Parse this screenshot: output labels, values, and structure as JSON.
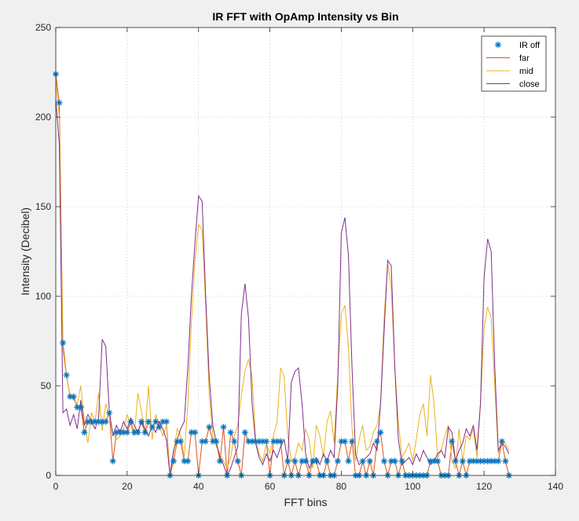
{
  "chart_data": {
    "type": "line",
    "title": "IR FFT with OpAmp Intensity vs Bin",
    "xlabel": "FFT bins",
    "ylabel": "Intensity (Decibel)",
    "xlim": [
      0,
      140
    ],
    "ylim": [
      0,
      250
    ],
    "xticks": [
      0,
      20,
      40,
      60,
      80,
      100,
      120,
      140
    ],
    "yticks": [
      0,
      50,
      100,
      150,
      200,
      250
    ],
    "grid": "on",
    "legend_position": "top-right",
    "series": [
      {
        "name": "IR off",
        "style": "marker",
        "marker": "*",
        "color": "#0072BD",
        "x": [
          0,
          1,
          2,
          3,
          4,
          5,
          6,
          7,
          8,
          9,
          10,
          11,
          12,
          13,
          14,
          15,
          16,
          17,
          18,
          19,
          20,
          21,
          22,
          23,
          24,
          25,
          26,
          27,
          28,
          29,
          30,
          31,
          32,
          33,
          34,
          35,
          36,
          37,
          38,
          39,
          40,
          41,
          42,
          43,
          44,
          45,
          46,
          47,
          48,
          49,
          50,
          51,
          52,
          53,
          54,
          55,
          56,
          57,
          58,
          59,
          60,
          61,
          62,
          63,
          64,
          65,
          66,
          67,
          68,
          69,
          70,
          71,
          72,
          73,
          74,
          75,
          76,
          77,
          78,
          79,
          80,
          81,
          82,
          83,
          84,
          85,
          86,
          87,
          88,
          89,
          90,
          91,
          92,
          93,
          94,
          95,
          96,
          97,
          98,
          99,
          100,
          101,
          102,
          103,
          104,
          105,
          106,
          107,
          108,
          109,
          110,
          111,
          112,
          113,
          114,
          115,
          116,
          117,
          118,
          119,
          120,
          121,
          122,
          123,
          124,
          125,
          126,
          127
        ],
        "y": [
          224,
          208,
          74,
          56,
          44,
          44,
          38,
          38,
          24,
          30,
          30,
          30,
          30,
          30,
          30,
          35,
          8,
          24,
          24,
          24,
          24,
          30,
          24,
          24,
          30,
          24,
          30,
          27,
          30,
          27,
          30,
          30,
          0,
          8,
          19,
          19,
          8,
          8,
          24,
          24,
          0,
          19,
          19,
          27,
          19,
          19,
          8,
          27,
          0,
          24,
          19,
          8,
          0,
          24,
          19,
          19,
          19,
          19,
          19,
          19,
          0,
          19,
          19,
          19,
          0,
          8,
          0,
          8,
          0,
          8,
          8,
          0,
          8,
          8,
          0,
          0,
          8,
          0,
          0,
          8,
          19,
          19,
          8,
          19,
          0,
          0,
          8,
          0,
          8,
          0,
          19,
          24,
          8,
          0,
          8,
          8,
          0,
          8,
          0,
          0,
          0,
          0,
          0,
          0,
          0,
          8,
          8,
          8,
          0,
          0,
          0,
          19,
          8,
          0,
          8,
          0,
          8,
          8,
          8,
          8,
          8,
          8,
          8,
          8,
          8,
          19,
          8,
          0
        ]
      },
      {
        "name": "far",
        "style": "line",
        "color": "#D95319",
        "x": [
          0,
          1,
          2,
          3,
          4,
          5,
          6,
          7,
          8,
          9,
          10,
          11,
          12,
          13,
          14,
          15,
          16,
          17,
          18,
          19,
          20,
          21,
          22,
          23,
          24,
          25,
          26,
          27,
          28,
          29,
          30,
          31,
          32,
          33,
          34,
          35,
          36,
          37,
          38,
          39,
          40,
          41,
          42,
          43,
          44,
          45,
          46,
          47,
          48,
          49,
          50,
          51,
          52,
          53,
          54,
          55,
          56,
          57,
          58,
          59,
          60,
          61,
          62,
          63,
          64,
          65,
          66,
          67,
          68,
          69,
          70,
          71,
          72,
          73,
          74,
          75,
          76,
          77,
          78,
          79,
          80,
          81,
          82,
          83,
          84,
          85,
          86,
          87,
          88,
          89,
          90,
          91,
          92,
          93,
          94,
          95,
          96,
          97,
          98,
          99,
          100,
          101,
          102,
          103,
          104,
          105,
          106,
          107,
          108,
          109,
          110,
          111,
          112,
          113,
          114,
          115,
          116,
          117,
          118,
          119,
          120,
          121,
          122,
          123,
          124,
          125,
          126,
          127
        ],
        "y": [
          224,
          208,
          74,
          56,
          44,
          44,
          38,
          38,
          24,
          30,
          30,
          30,
          30,
          30,
          30,
          35,
          8,
          24,
          24,
          24,
          24,
          30,
          24,
          24,
          30,
          24,
          30,
          27,
          30,
          27,
          30,
          30,
          0,
          8,
          19,
          19,
          8,
          8,
          24,
          24,
          0,
          19,
          19,
          27,
          19,
          19,
          8,
          27,
          0,
          24,
          19,
          8,
          0,
          24,
          19,
          19,
          19,
          19,
          19,
          19,
          0,
          19,
          19,
          19,
          0,
          8,
          0,
          8,
          0,
          8,
          8,
          0,
          8,
          8,
          0,
          0,
          8,
          0,
          0,
          8,
          19,
          19,
          8,
          19,
          0,
          0,
          8,
          0,
          8,
          0,
          19,
          24,
          8,
          0,
          8,
          8,
          0,
          8,
          0,
          0,
          0,
          0,
          0,
          0,
          0,
          8,
          8,
          8,
          0,
          0,
          0,
          19,
          8,
          0,
          8,
          0,
          8,
          8,
          8,
          8,
          8,
          8,
          8,
          8,
          8,
          19,
          8,
          0
        ]
      },
      {
        "name": "mid",
        "style": "line",
        "color": "#EDB120",
        "x": [
          0,
          1,
          2,
          3,
          4,
          5,
          6,
          7,
          8,
          9,
          10,
          11,
          12,
          13,
          14,
          15,
          16,
          17,
          18,
          19,
          20,
          21,
          22,
          23,
          24,
          25,
          26,
          27,
          28,
          29,
          30,
          31,
          32,
          33,
          34,
          35,
          36,
          37,
          38,
          39,
          40,
          41,
          42,
          43,
          44,
          45,
          46,
          47,
          48,
          49,
          50,
          51,
          52,
          53,
          54,
          55,
          56,
          57,
          58,
          59,
          60,
          61,
          62,
          63,
          64,
          65,
          66,
          67,
          68,
          69,
          70,
          71,
          72,
          73,
          74,
          75,
          76,
          77,
          78,
          79,
          80,
          81,
          82,
          83,
          84,
          85,
          86,
          87,
          88,
          89,
          90,
          91,
          92,
          93,
          94,
          95,
          96,
          97,
          98,
          99,
          100,
          101,
          102,
          103,
          104,
          105,
          106,
          107,
          108,
          109,
          110,
          111,
          112,
          113,
          114,
          115,
          116,
          117,
          118,
          119,
          120,
          121,
          122,
          123,
          124,
          125,
          126,
          127
        ],
        "y": [
          220,
          200,
          70,
          55,
          45,
          42,
          40,
          50,
          30,
          18,
          35,
          30,
          46,
          25,
          40,
          33,
          24,
          20,
          22,
          26,
          34,
          28,
          22,
          46,
          36,
          24,
          50,
          20,
          34,
          28,
          22,
          28,
          0,
          12,
          26,
          22,
          10,
          40,
          85,
          120,
          140,
          137,
          95,
          45,
          22,
          16,
          12,
          8,
          4,
          10,
          22,
          28,
          45,
          58,
          65,
          55,
          20,
          12,
          8,
          18,
          12,
          22,
          30,
          60,
          55,
          22,
          8,
          10,
          18,
          14,
          26,
          20,
          4,
          28,
          22,
          10,
          30,
          36,
          18,
          56,
          90,
          95,
          72,
          26,
          8,
          20,
          28,
          14,
          16,
          24,
          28,
          40,
          88,
          118,
          105,
          60,
          30,
          10,
          14,
          18,
          8,
          20,
          34,
          40,
          22,
          56,
          40,
          10,
          14,
          22,
          28,
          8,
          4,
          26,
          8,
          22,
          20,
          26,
          10,
          40,
          82,
          94,
          88,
          50,
          12,
          20,
          18,
          14
        ]
      },
      {
        "name": "close",
        "style": "line",
        "color": "#7E2F8E",
        "x": [
          0,
          1,
          2,
          3,
          4,
          5,
          6,
          7,
          8,
          9,
          10,
          11,
          12,
          13,
          14,
          15,
          16,
          17,
          18,
          19,
          20,
          21,
          22,
          23,
          24,
          25,
          26,
          27,
          28,
          29,
          30,
          31,
          32,
          33,
          34,
          35,
          36,
          37,
          38,
          39,
          40,
          41,
          42,
          43,
          44,
          45,
          46,
          47,
          48,
          49,
          50,
          51,
          52,
          53,
          54,
          55,
          56,
          57,
          58,
          59,
          60,
          61,
          62,
          63,
          64,
          65,
          66,
          67,
          68,
          69,
          70,
          71,
          72,
          73,
          74,
          75,
          76,
          77,
          78,
          79,
          80,
          81,
          82,
          83,
          84,
          85,
          86,
          87,
          88,
          89,
          90,
          91,
          92,
          93,
          94,
          95,
          96,
          97,
          98,
          99,
          100,
          101,
          102,
          103,
          104,
          105,
          106,
          107,
          108,
          109,
          110,
          111,
          112,
          113,
          114,
          115,
          116,
          117,
          118,
          119,
          120,
          121,
          122,
          123,
          124,
          125,
          126,
          127
        ],
        "y": [
          210,
          185,
          35,
          37,
          28,
          34,
          26,
          42,
          28,
          34,
          30,
          26,
          32,
          76,
          72,
          36,
          22,
          28,
          24,
          30,
          26,
          32,
          28,
          24,
          30,
          26,
          22,
          28,
          24,
          30,
          26,
          20,
          0,
          14,
          20,
          26,
          30,
          60,
          100,
          130,
          156,
          153,
          100,
          55,
          28,
          18,
          10,
          6,
          0,
          4,
          10,
          16,
          90,
          107,
          88,
          40,
          18,
          10,
          6,
          12,
          8,
          14,
          10,
          16,
          20,
          8,
          52,
          58,
          60,
          40,
          12,
          4,
          8,
          10,
          6,
          12,
          8,
          14,
          10,
          50,
          135,
          144,
          123,
          60,
          12,
          6,
          8,
          10,
          12,
          18,
          14,
          40,
          80,
          120,
          117,
          60,
          20,
          6,
          8,
          10,
          6,
          12,
          8,
          14,
          10,
          6,
          8,
          12,
          14,
          10,
          27,
          24,
          8,
          14,
          18,
          26,
          22,
          28,
          14,
          40,
          110,
          132,
          125,
          60,
          14,
          18,
          16,
          12
        ]
      }
    ]
  }
}
